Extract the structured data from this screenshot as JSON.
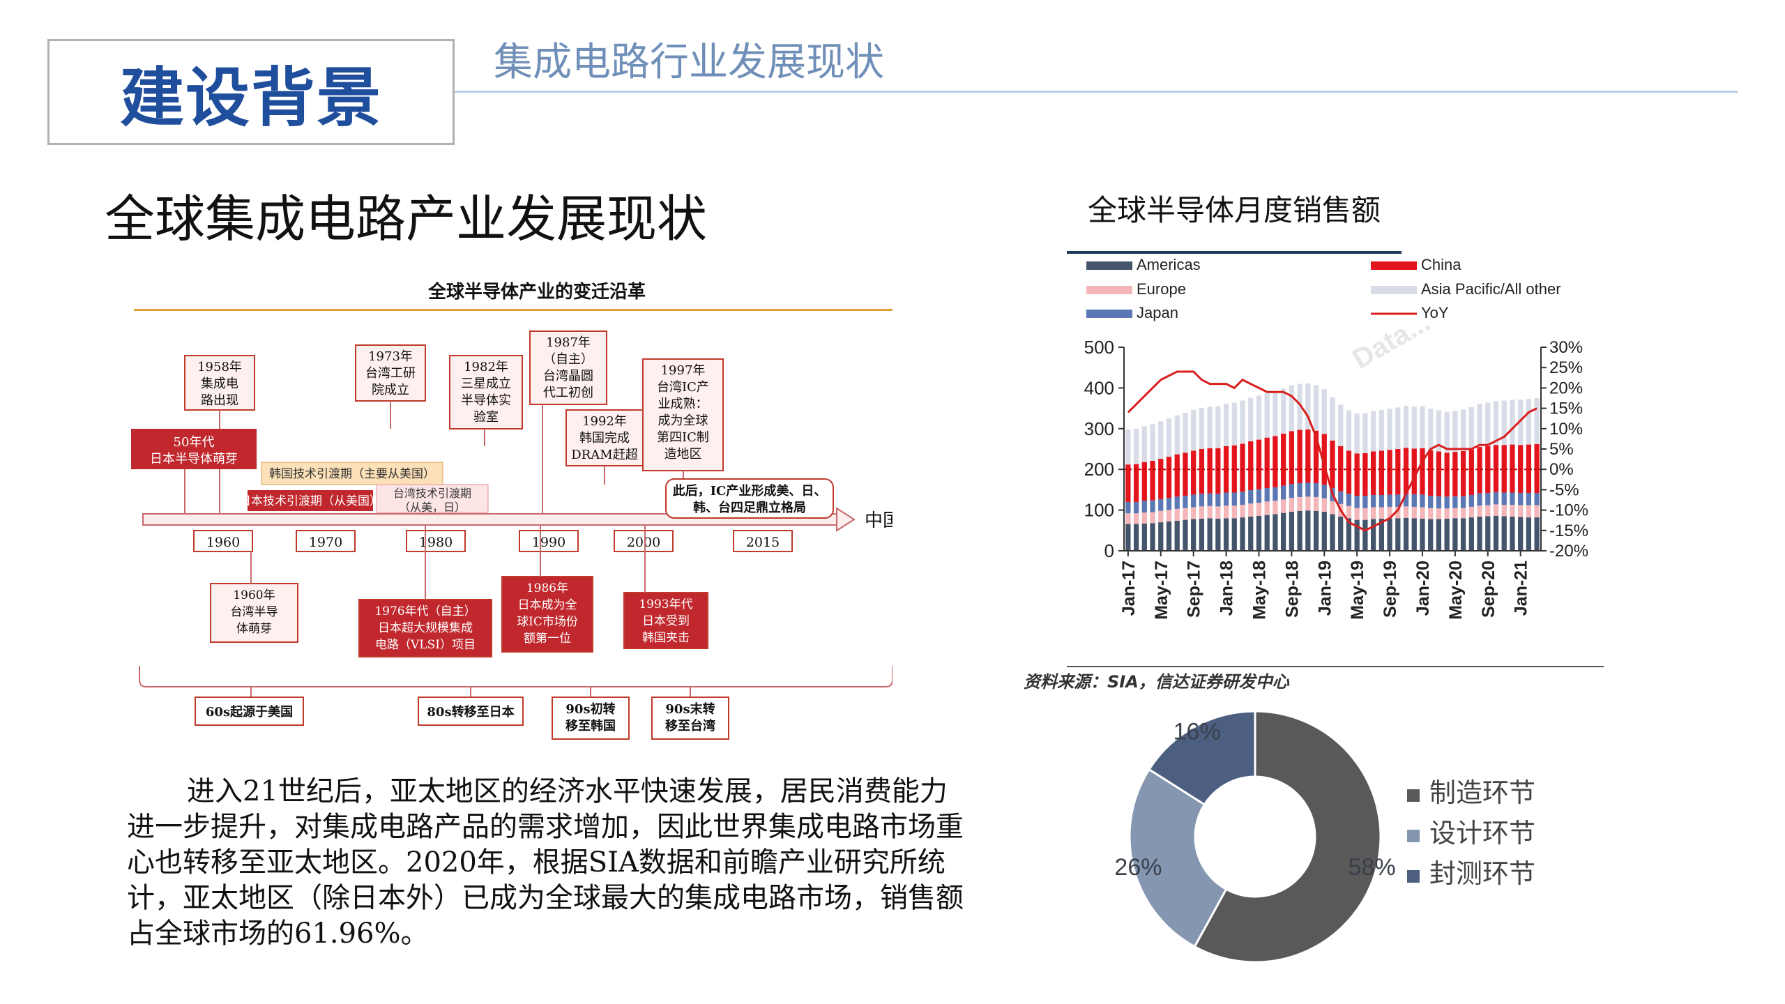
{
  "header": {
    "badge": "建设背景",
    "subtitle": "集成电路行业发展现状"
  },
  "main_title": "全球集成电路产业发展现状",
  "timeline": {
    "title": "全球半导体产业的变迁沿革",
    "years": [
      "1960",
      "1970",
      "1980",
      "1990",
      "2000",
      "2015"
    ],
    "arrow_label": "中国？",
    "above_boxes": [
      {
        "text": [
          "1958年",
          "集成电",
          "路出现"
        ]
      },
      {
        "text": [
          "1973年",
          "台湾工研",
          "院成立"
        ]
      },
      {
        "text": [
          "1982年",
          "三星成立",
          "半导体实",
          "验室"
        ]
      },
      {
        "text": [
          "1987年",
          "（自主）",
          "台湾晶圆",
          "代工初创"
        ]
      },
      {
        "text": [
          "1992年",
          "韩国完成",
          "DRAM赶超"
        ]
      },
      {
        "text": [
          "1997年",
          "台湾IC产",
          "业成熟：",
          "成为全球",
          "第四IC制",
          "造地区"
        ]
      }
    ],
    "red_above": {
      "text": [
        "50年代",
        "日本半导体萌芽"
      ]
    },
    "bands": [
      {
        "text": "韩国技术引渡期（主要从美国）"
      },
      {
        "text": "日本技术引渡期（从美国）"
      },
      {
        "text": [
          "台湾技术引渡期",
          "（从美，日）"
        ]
      }
    ],
    "note": {
      "text": [
        "此后，IC产业形成美、日、",
        "韩、台四足鼎立格局"
      ]
    },
    "below_boxes": [
      {
        "text": [
          "1960年",
          "台湾半导",
          "体萌芽"
        ]
      },
      {
        "text": [
          "1976年代（自主）",
          "日本超大规模集成",
          "电路（VLSI）项目"
        ]
      },
      {
        "text": [
          "1986年",
          "日本成为全",
          "球IC市场份",
          "额第一位"
        ]
      },
      {
        "text": [
          "1993年代",
          "日本受到",
          "韩国夹击"
        ]
      }
    ],
    "phases": [
      "60s起源于美国",
      "80s转移至日本",
      [
        "90s初转",
        "移至韩国"
      ],
      [
        "90s末转",
        "移至台湾"
      ]
    ]
  },
  "paragraph": "进入21世纪后，亚太地区的经济水平快速发展，居民消费能力进一步提升，对集成电路产品的需求增加，因此世界集成电路市场重心也转移至亚太地区。2020年，根据SIA数据和前瞻产业研究所统计，亚太地区（除日本外）已成为全球最大的集成电路市场，销售额占全球市场的61.96%。",
  "bar_chart_title": "全球半导体月度销售额",
  "source": "资料来源：SIA，信达证券研发中心",
  "watermark": "Data...",
  "chart_data": [
    {
      "type": "bar",
      "title": "全球半导体月度销售额",
      "stacked": true,
      "legend": [
        "Americas",
        "Europe",
        "Japan",
        "China",
        "Asia Pacific/All other",
        "YoY"
      ],
      "legend_position": "top",
      "x_tick_labels": [
        "Jan-17",
        "May-17",
        "Sep-17",
        "Jan-18",
        "May-18",
        "Sep-18",
        "Jan-19",
        "May-19",
        "Sep-19",
        "Jan-20",
        "May-20",
        "Sep-20",
        "Jan-21"
      ],
      "x_start": "Jan-17",
      "x_end": "Mar-21",
      "y_left_lim": [
        0,
        500
      ],
      "y_left_ticks": [
        0,
        100,
        200,
        300,
        400,
        500
      ],
      "y_right_lim": [
        -20,
        30
      ],
      "y_right_ticks": [
        "-20%",
        "-15%",
        "-10%",
        "-5%",
        "0%",
        "5%",
        "10%",
        "15%",
        "20%",
        "25%",
        "30%"
      ],
      "series": [
        {
          "name": "Americas",
          "color": "#44546a",
          "values": [
            66,
            66,
            67,
            68,
            70,
            72,
            74,
            76,
            78,
            79,
            80,
            79,
            80,
            80,
            82,
            84,
            86,
            88,
            90,
            93,
            96,
            98,
            99,
            98,
            96,
            90,
            84,
            80,
            76,
            76,
            78,
            79,
            80,
            80,
            81,
            80,
            79,
            78,
            78,
            79,
            80,
            80,
            82,
            84,
            85,
            86,
            85,
            84,
            83,
            82,
            82
          ]
        },
        {
          "name": "Europe",
          "color": "#f4b6b9",
          "values": [
            26,
            26,
            27,
            27,
            28,
            28,
            29,
            29,
            29,
            30,
            30,
            30,
            31,
            31,
            31,
            32,
            32,
            33,
            33,
            33,
            34,
            34,
            34,
            34,
            33,
            32,
            31,
            30,
            29,
            29,
            29,
            28,
            28,
            28,
            28,
            28,
            28,
            27,
            26,
            25,
            25,
            25,
            26,
            27,
            27,
            28,
            28,
            29,
            29,
            30,
            30
          ]
        },
        {
          "name": "Japan",
          "color": "#5b78b4",
          "values": [
            28,
            28,
            29,
            29,
            29,
            30,
            30,
            30,
            31,
            31,
            31,
            31,
            32,
            32,
            32,
            33,
            33,
            33,
            33,
            34,
            34,
            34,
            34,
            34,
            33,
            32,
            31,
            30,
            30,
            30,
            30,
            30,
            30,
            30,
            31,
            31,
            31,
            30,
            30,
            29,
            29,
            29,
            29,
            30,
            30,
            30,
            30,
            30,
            30,
            30,
            30
          ]
        },
        {
          "name": "China",
          "color": "#e3141c",
          "values": [
            92,
            93,
            95,
            97,
            99,
            101,
            104,
            106,
            108,
            110,
            111,
            112,
            114,
            116,
            118,
            120,
            122,
            124,
            126,
            128,
            130,
            131,
            131,
            129,
            125,
            117,
            111,
            106,
            104,
            105,
            107,
            109,
            110,
            112,
            113,
            112,
            114,
            112,
            110,
            108,
            109,
            111,
            112,
            114,
            115,
            116,
            117,
            118,
            118,
            119,
            120
          ]
        },
        {
          "name": "Asia Pacific/All other",
          "color": "#d8dce6",
          "values": [
            86,
            87,
            88,
            90,
            92,
            94,
            96,
            98,
            100,
            101,
            102,
            103,
            104,
            105,
            106,
            107,
            108,
            109,
            110,
            111,
            112,
            113,
            113,
            112,
            110,
            106,
            102,
            99,
            98,
            98,
            99,
            100,
            101,
            102,
            103,
            103,
            103,
            102,
            101,
            100,
            101,
            102,
            104,
            106,
            107,
            108,
            109,
            110,
            111,
            112,
            113
          ]
        },
        {
          "name": "YoY",
          "color": "#d81e1e",
          "axis": "right",
          "values": [
            14,
            16,
            18,
            20,
            22,
            23,
            24,
            24,
            24,
            22,
            21,
            21,
            21,
            20,
            22,
            21,
            20,
            19,
            19,
            19,
            18,
            16,
            13,
            8,
            1,
            -6,
            -10,
            -13,
            -14,
            -15,
            -14,
            -13,
            -12,
            -10,
            -6,
            -2,
            2,
            5,
            6,
            5,
            5,
            5,
            5,
            6,
            6,
            7,
            8,
            10,
            12,
            14,
            15
          ]
        }
      ]
    },
    {
      "type": "pie",
      "donut": true,
      "legend": [
        "制造环节",
        "设计环节",
        "封测环节"
      ],
      "legend_position": "right",
      "slices": [
        {
          "label": "制造环节",
          "value": 58,
          "display": "58%",
          "color": "#595959"
        },
        {
          "label": "设计环节",
          "value": 26,
          "display": "26%",
          "color": "#8496b0"
        },
        {
          "label": "封测环节",
          "value": 16,
          "display": "16%",
          "color": "#4d5f80"
        }
      ]
    }
  ]
}
